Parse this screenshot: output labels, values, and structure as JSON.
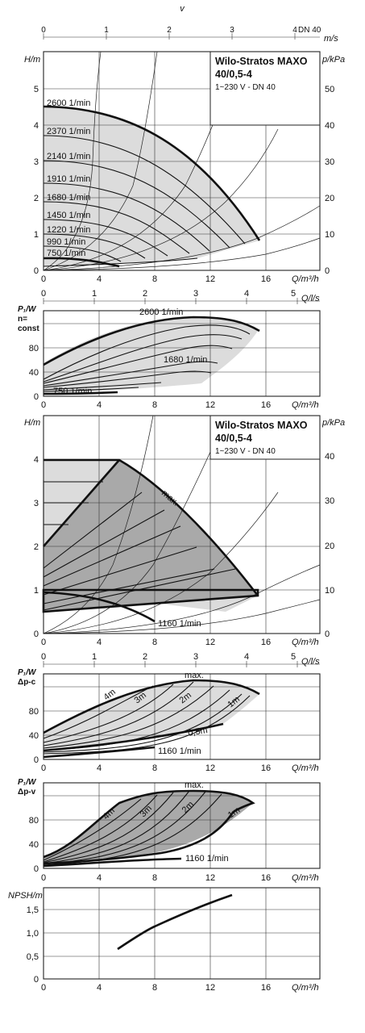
{
  "velocity_axis": {
    "label": "v",
    "unit": "m/s",
    "ticks": [
      "0",
      "1",
      "2",
      "3",
      "4"
    ],
    "pipe": "DN 40"
  },
  "product": {
    "name1": "Wilo-Stratos MAXO",
    "name2": "40/0,5-4",
    "sub": "1~230 V - DN 40"
  },
  "flow_ls_axis": {
    "label": "Q/l/s",
    "ticks": [
      "0",
      "1",
      "2",
      "3",
      "4",
      "5"
    ]
  },
  "panels": {
    "p1": {
      "ylabel": "H/m",
      "ylabel_right": "p/kPa",
      "xlabel": "Q/m³/h",
      "yticks": [
        "0",
        "1",
        "2",
        "3",
        "4",
        "5"
      ],
      "yticks_right": [
        "0",
        "10",
        "20",
        "30",
        "40",
        "50"
      ],
      "xticks": [
        "0",
        "4",
        "8",
        "12",
        "16"
      ]
    },
    "p2": {
      "ylabel1": "P₁/W",
      "ylabel2": "n=",
      "ylabel3": "const",
      "xlabel": "Q/m³/h",
      "yticks": [
        "0",
        "40",
        "80"
      ],
      "xticks": [
        "0",
        "4",
        "8",
        "12",
        "16"
      ]
    },
    "p3": {
      "ylabel": "H/m",
      "ylabel_right": "p/kPa",
      "xlabel": "Q/m³/h",
      "yticks": [
        "0",
        "1",
        "2",
        "3",
        "4"
      ],
      "yticks_right": [
        "0",
        "10",
        "20",
        "30",
        "40"
      ],
      "xticks": [
        "0",
        "4",
        "8",
        "12",
        "16"
      ]
    },
    "p4": {
      "ylabel1": "P₁/W",
      "ylabel2": "Δp-c",
      "xlabel": "Q/m³/h",
      "yticks": [
        "0",
        "40",
        "80"
      ],
      "xticks": [
        "0",
        "4",
        "8",
        "12",
        "16"
      ]
    },
    "p5": {
      "ylabel1": "P₁/W",
      "ylabel2": "Δp-v",
      "xlabel": "Q/m³/h",
      "yticks": [
        "0",
        "40",
        "80"
      ],
      "xticks": [
        "0",
        "4",
        "8",
        "12",
        "16"
      ]
    },
    "p6": {
      "ylabel": "NPSH/m",
      "xlabel": "Q/m³/h",
      "yticks": [
        "0",
        "0,5",
        "1,0",
        "1,5"
      ],
      "xticks": [
        "0",
        "4",
        "8",
        "12",
        "16"
      ]
    }
  },
  "chart_data": [
    {
      "type": "line",
      "title": "Wilo-Stratos MAXO 40/0,5-4",
      "xlabel": "Q/m³/h",
      "ylabel": "H/m",
      "xlim": [
        0,
        20
      ],
      "ylim": [
        0,
        5.5
      ],
      "series": [
        {
          "name": "2600 1/min",
          "points": [
            [
              0,
              4.5
            ],
            [
              4,
              4.32
            ],
            [
              8,
              3.7
            ],
            [
              12,
              2.6
            ],
            [
              15.4,
              0.8
            ]
          ]
        },
        {
          "name": "2370 1/min",
          "points": [
            [
              0,
              3.73
            ],
            [
              4,
              3.55
            ],
            [
              8,
              2.95
            ],
            [
              12,
              1.9
            ],
            [
              14.5,
              0.72
            ]
          ]
        },
        {
          "name": "2140 1/min",
          "points": [
            [
              0,
              3.03
            ],
            [
              4,
              2.85
            ],
            [
              8,
              2.3
            ],
            [
              12,
              1.3
            ],
            [
              13.4,
              0.62
            ]
          ]
        },
        {
          "name": "1910 1/min",
          "points": [
            [
              0,
              2.43
            ],
            [
              4,
              2.25
            ],
            [
              8,
              1.7
            ],
            [
              11.7,
              0.55
            ]
          ]
        },
        {
          "name": "1680 1/min",
          "points": [
            [
              0,
              1.9
            ],
            [
              4,
              1.72
            ],
            [
              8,
              1.18
            ],
            [
              10.4,
              0.47
            ]
          ]
        },
        {
          "name": "1450 1/min",
          "points": [
            [
              0,
              1.42
            ],
            [
              4,
              1.24
            ],
            [
              8,
              0.7
            ],
            [
              8.9,
              0.41
            ]
          ]
        },
        {
          "name": "1220 1/min",
          "points": [
            [
              0,
              1.0
            ],
            [
              4,
              0.83
            ],
            [
              7.5,
              0.33
            ]
          ]
        },
        {
          "name": "990 1/min",
          "points": [
            [
              0,
              0.66
            ],
            [
              4,
              0.45
            ],
            [
              5.9,
              0.25
            ]
          ]
        },
        {
          "name": "750 1/min",
          "points": [
            [
              0,
              0.4
            ],
            [
              3,
              0.3
            ],
            [
              5.3,
              0.1
            ]
          ]
        }
      ]
    },
    {
      "type": "line",
      "xlabel": "Q/m³/h",
      "ylabel": "P₁/W",
      "xlim": [
        0,
        20
      ],
      "ylim": [
        0,
        120
      ],
      "series": [
        {
          "name": "2600 1/min",
          "points": [
            [
              0,
              53
            ],
            [
              4,
              82
            ],
            [
              8,
              102
            ],
            [
              11,
              108
            ],
            [
              14,
              103
            ],
            [
              15.5,
              94
            ]
          ]
        },
        {
          "name": "1680 1/min",
          "points": [
            [
              0,
              28
            ],
            [
              4,
              40
            ],
            [
              8,
              50
            ],
            [
              11,
              54
            ]
          ]
        },
        {
          "name": "750 1/min",
          "points": [
            [
              0,
              3
            ],
            [
              3,
              5
            ],
            [
              5.3,
              5
            ]
          ]
        }
      ]
    },
    {
      "type": "line",
      "title": "Wilo-Stratos MAXO 40/0,5-4",
      "xlabel": "Q/m³/h",
      "ylabel": "H/m",
      "xlim": [
        0,
        20
      ],
      "ylim": [
        0,
        4.4
      ],
      "series": [
        {
          "name": "max.",
          "points": [
            [
              0,
              4.0
            ],
            [
              5.5,
              4.0
            ],
            [
              8,
              3.55
            ],
            [
              12,
              2.3
            ],
            [
              15.5,
              0.85
            ]
          ]
        },
        {
          "name": "1160 1/min",
          "points": [
            [
              0,
              0.9
            ],
            [
              4,
              0.8
            ],
            [
              8,
              0.25
            ]
          ]
        }
      ]
    },
    {
      "type": "line",
      "xlabel": "Q/m³/h",
      "ylabel": "P₁/W",
      "xlim": [
        0,
        20
      ],
      "ylim": [
        0,
        120
      ],
      "series": [
        {
          "name": "max.",
          "points": [
            [
              0,
              45
            ],
            [
              4,
              75
            ],
            [
              8,
              102
            ],
            [
              12,
              107
            ],
            [
              15.5,
              94
            ]
          ]
        },
        {
          "name": "0,5m",
          "points": [
            [
              0,
              12
            ],
            [
              6,
              22
            ],
            [
              12,
              40
            ],
            [
              13.8,
              47
            ]
          ]
        },
        {
          "name": "1160 1/min",
          "points": [
            [
              0,
              5
            ],
            [
              8,
              20
            ]
          ]
        }
      ]
    },
    {
      "type": "line",
      "xlabel": "Q/m³/h",
      "ylabel": "P₁/W",
      "xlim": [
        0,
        20
      ],
      "ylim": [
        0,
        120
      ],
      "series": [
        {
          "name": "max.",
          "points": [
            [
              0,
              18
            ],
            [
              4,
              60
            ],
            [
              5.5,
              105
            ],
            [
              9,
              113
            ],
            [
              13,
              110
            ],
            [
              15,
              104
            ]
          ]
        },
        {
          "name": "1160 1/min",
          "points": [
            [
              0,
              5
            ],
            [
              8,
              20
            ],
            [
              10,
              20
            ]
          ]
        }
      ]
    },
    {
      "type": "line",
      "xlabel": "Q/m³/h",
      "ylabel": "NPSH/m",
      "xlim": [
        0,
        20
      ],
      "ylim": [
        0,
        2.0
      ],
      "series": [
        {
          "name": "NPSH",
          "points": [
            [
              5.3,
              0.67
            ],
            [
              8,
              1.05
            ],
            [
              10,
              1.3
            ],
            [
              12,
              1.57
            ],
            [
              13.6,
              1.77
            ]
          ]
        }
      ]
    }
  ],
  "annotations": {
    "p1_speeds": [
      "2600 1/min",
      "2370 1/min",
      "2140 1/min",
      "1910 1/min",
      "1680 1/min",
      "1450 1/min",
      "1220 1/min",
      "990 1/min",
      "750 1/min"
    ],
    "p2_labels": [
      "2600 1/min",
      "1680 1/min",
      "750 1/min"
    ],
    "p3_labels": [
      "max.",
      "1160 1/min"
    ],
    "p4_labels": [
      "max.",
      "4m",
      "3m",
      "2m",
      "1m",
      "0,5m",
      "1160 1/min"
    ],
    "p5_labels": [
      "max.",
      "4m",
      "3m",
      "2m",
      "1m",
      "1160 1/min"
    ]
  }
}
